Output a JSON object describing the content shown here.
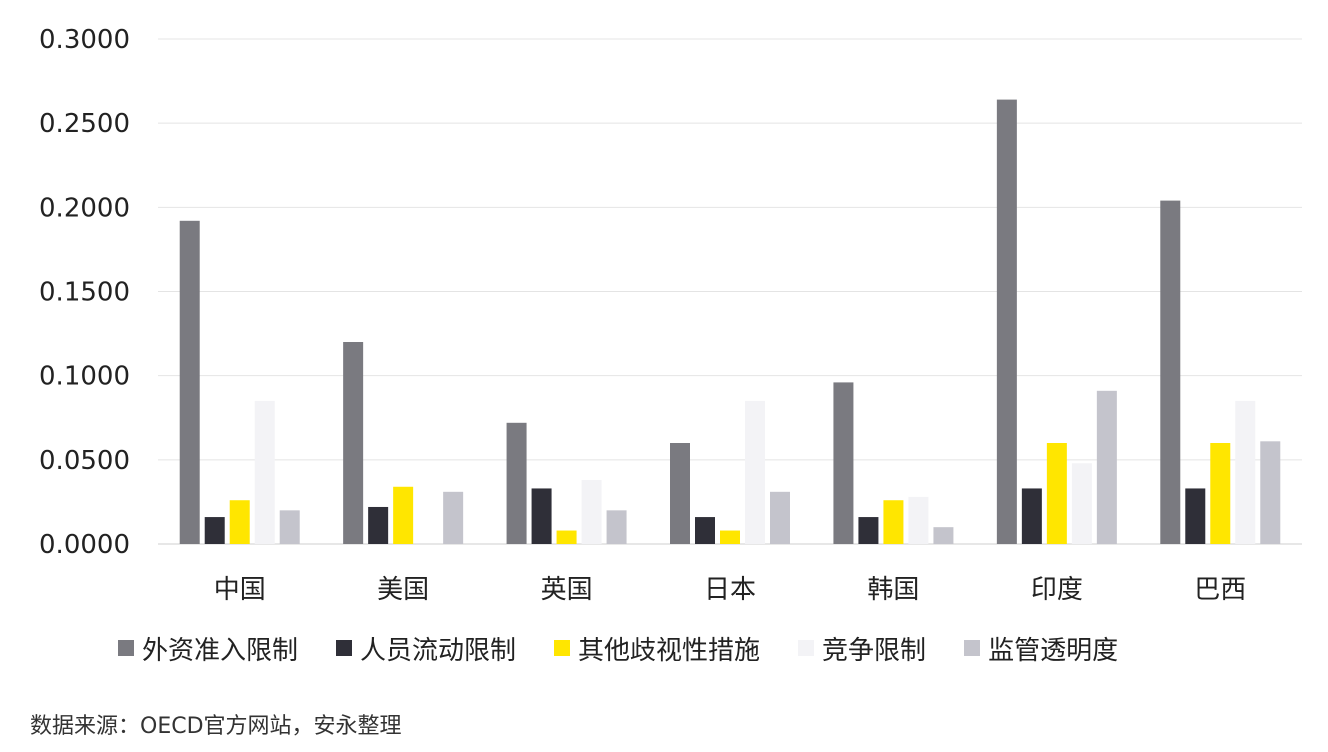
{
  "chart_data": {
    "type": "bar",
    "categories": [
      "中国",
      "美国",
      "英国",
      "日本",
      "韩国",
      "印度",
      "巴西"
    ],
    "series": [
      {
        "name": "外资准入限制",
        "color": "#7a7a80",
        "values": [
          0.192,
          0.12,
          0.072,
          0.06,
          0.096,
          0.264,
          0.204
        ]
      },
      {
        "name": "人员流动限制",
        "color": "#2f2f38",
        "values": [
          0.016,
          0.022,
          0.033,
          0.016,
          0.016,
          0.033,
          0.033
        ]
      },
      {
        "name": "其他歧视性措施",
        "color": "#ffe600",
        "values": [
          0.026,
          0.034,
          0.008,
          0.008,
          0.026,
          0.06,
          0.06
        ]
      },
      {
        "name": "竞争限制",
        "color": "#f3f3f6",
        "values": [
          0.085,
          0.0,
          0.038,
          0.085,
          0.028,
          0.048,
          0.085
        ]
      },
      {
        "name": "监管透明度",
        "color": "#c4c4cc",
        "values": [
          0.02,
          0.031,
          0.02,
          0.031,
          0.01,
          0.091,
          0.061
        ]
      }
    ],
    "yticks": [
      "0.0000",
      "0.0500",
      "0.1000",
      "0.1500",
      "0.2000",
      "0.2500",
      "0.3000"
    ],
    "ylim": [
      0,
      0.3
    ],
    "grid": true,
    "legend_position": "bottom"
  },
  "source": "数据来源：OECD官方网站，安永整理"
}
